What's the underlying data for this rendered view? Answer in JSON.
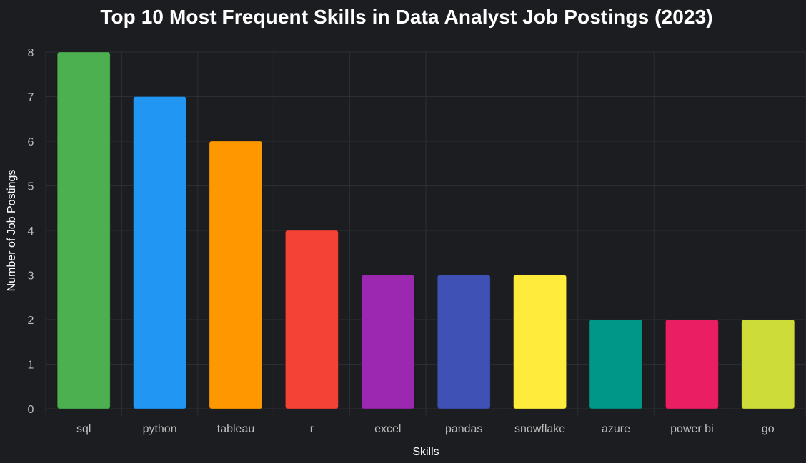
{
  "chart_data": {
    "type": "bar",
    "title": "Top 10 Most Frequent Skills in Data Analyst Job Postings (2023)",
    "xlabel": "Skills",
    "ylabel": "Number of Job Postings",
    "categories": [
      "sql",
      "python",
      "tableau",
      "r",
      "excel",
      "pandas",
      "snowflake",
      "azure",
      "power bi",
      "go"
    ],
    "values": [
      8,
      7,
      6,
      4,
      3,
      3,
      3,
      2,
      2,
      2
    ],
    "colors": [
      "#4caf50",
      "#2196f3",
      "#ff9800",
      "#f44336",
      "#9c27b0",
      "#3f51b5",
      "#ffeb3b",
      "#009688",
      "#e91e63",
      "#cddc39"
    ],
    "ylim": [
      0,
      8
    ],
    "yticks": [
      0,
      1,
      2,
      3,
      4,
      5,
      6,
      7,
      8
    ],
    "grid": true,
    "legend": "none"
  },
  "theme": {
    "background": "#1c1d21",
    "grid_color": "#2c2e33",
    "tick_color": "#bdbdbd",
    "title_color": "#ffffff"
  }
}
